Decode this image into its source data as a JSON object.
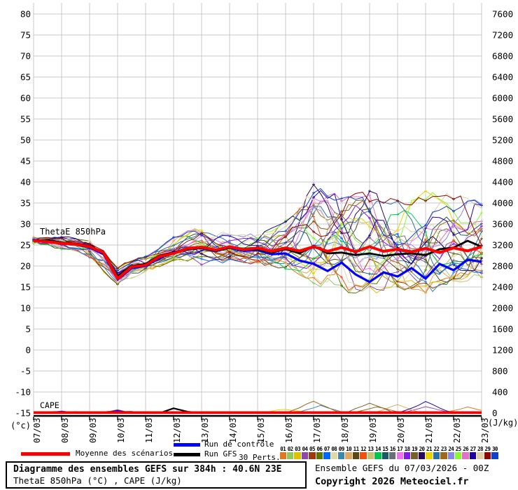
{
  "chart_data": {
    "type": "line",
    "title_label": "ThetaE 850hPa",
    "cape_label": "CAPE",
    "grid_color": "#c8c8c8",
    "left_axis": {
      "unit": "(°c)",
      "min": -15,
      "max": 80,
      "ticks": [
        80,
        75,
        70,
        65,
        60,
        55,
        50,
        45,
        40,
        35,
        30,
        25,
        20,
        15,
        10,
        5,
        0,
        -5,
        -10,
        -15
      ]
    },
    "right_axis": {
      "unit": "(J/kg)",
      "min": 0,
      "max": 7600,
      "ticks": [
        7600,
        7200,
        6800,
        6400,
        6000,
        5600,
        5200,
        4800,
        4400,
        4000,
        3600,
        3200,
        2800,
        2400,
        2000,
        1600,
        1200,
        800,
        400,
        0
      ]
    },
    "x_labels": [
      "07/03",
      "08/03",
      "09/03",
      "10/03",
      "11/03",
      "12/03",
      "13/03",
      "14/03",
      "15/03",
      "16/03",
      "17/03",
      "18/03",
      "19/03",
      "20/03",
      "21/03",
      "22/03",
      "23/03"
    ],
    "series": {
      "mean": {
        "label": "Moyenne des scénarios",
        "color": "#ff0000",
        "halfday_values": [
          26.0,
          25.8,
          25.4,
          25.2,
          24.6,
          23.2,
          17.0,
          19.8,
          20.2,
          22.3,
          23.0,
          24.2,
          24.5,
          23.8,
          24.6,
          23.9,
          24.3,
          23.5,
          24.3,
          23.6,
          24.6,
          23.5,
          24.4,
          23.4,
          24.6,
          23.5,
          24.0,
          23.4,
          24.2,
          23.2,
          24.3,
          23.6,
          24.6
        ]
      },
      "control": {
        "label": "Run de contrôle",
        "color": "#0000ff",
        "halfday_values": [
          26.2,
          25.9,
          25.5,
          25.1,
          24.4,
          22.8,
          16.8,
          19.5,
          20.0,
          22.0,
          23.3,
          24.0,
          24.3,
          23.5,
          24.4,
          23.6,
          23.8,
          22.8,
          23.0,
          21.3,
          20.5,
          18.8,
          20.8,
          18.0,
          16.2,
          18.5,
          17.5,
          19.5,
          17.0,
          20.5,
          19.0,
          21.5,
          21.0
        ]
      },
      "gfs": {
        "label": "Run GFS",
        "color": "#000000",
        "halfday_values": [
          26.0,
          26.2,
          25.6,
          25.3,
          24.8,
          23.0,
          17.6,
          20.0,
          20.5,
          22.5,
          23.2,
          24.0,
          24.3,
          23.6,
          24.4,
          24.0,
          24.0,
          23.2,
          24.0,
          23.0,
          24.8,
          23.0,
          23.2,
          22.6,
          23.0,
          22.4,
          22.8,
          23.0,
          22.6,
          24.0,
          24.4,
          26.0,
          24.6
        ]
      }
    },
    "envelope_daily": {
      "min": [
        25.2,
        24.3,
        22.5,
        15.5,
        19.0,
        21.5,
        21.0,
        21.5,
        21.0,
        20.0,
        17.0,
        15.0,
        15.0,
        16.0,
        15.0,
        17.0,
        18.0
      ],
      "max": [
        26.8,
        26.8,
        26.3,
        19.5,
        22.5,
        26.5,
        29.5,
        27.5,
        27.0,
        30.0,
        38.0,
        35.0,
        36.0,
        34.0,
        36.0,
        36.0,
        34.0
      ]
    },
    "cape": {
      "mean_level_jkg": 8,
      "control_halfday_jkg": [
        0,
        0,
        30,
        0,
        0,
        0,
        40,
        0,
        0,
        0,
        0,
        0,
        0,
        0,
        0,
        0,
        0,
        0,
        0,
        0,
        0,
        0,
        0,
        0,
        0,
        0,
        0,
        0,
        0,
        0,
        0,
        0,
        0
      ],
      "gfs_halfday_jkg": [
        0,
        0,
        0,
        0,
        0,
        0,
        0,
        0,
        0,
        0,
        90,
        25,
        0,
        0,
        0,
        0,
        0,
        0,
        0,
        0,
        0,
        0,
        0,
        0,
        0,
        0,
        0,
        0,
        0,
        0,
        0,
        0,
        0
      ],
      "member_spikes": [
        {
          "member": 22,
          "day": 10,
          "peak_jkg": 230
        },
        {
          "member": 8,
          "day": 10.25,
          "peak_jkg": 140
        },
        {
          "member": 18,
          "day": 12,
          "peak_jkg": 185
        },
        {
          "member": 22,
          "day": 12.25,
          "peak_jkg": 120
        },
        {
          "member": 9,
          "day": 13,
          "peak_jkg": 150
        },
        {
          "member": 26,
          "day": 14,
          "peak_jkg": 210
        },
        {
          "member": 3,
          "day": 14,
          "peak_jkg": 120
        },
        {
          "member": 0,
          "day": 15.5,
          "peak_jkg": 110
        },
        {
          "member": 20,
          "day": 9,
          "peak_jkg": 70
        },
        {
          "member": 4,
          "day": 3,
          "peak_jkg": 45
        },
        {
          "member": 12,
          "day": 1,
          "peak_jkg": 35
        }
      ]
    },
    "members": {
      "count": 30,
      "labels": [
        "01",
        "02",
        "03",
        "04",
        "05",
        "06",
        "07",
        "08",
        "09",
        "10",
        "11",
        "12",
        "13",
        "14",
        "15",
        "16",
        "17",
        "18",
        "19",
        "20",
        "21",
        "22",
        "23",
        "24",
        "25",
        "26",
        "27",
        "28",
        "29",
        "30"
      ],
      "colors": [
        "#e07820",
        "#90c860",
        "#e0c000",
        "#9048a8",
        "#a03810",
        "#5a7800",
        "#0064ff",
        "#e0d8a8",
        "#3888b0",
        "#e0a860",
        "#584818",
        "#f05010",
        "#c8c070",
        "#00c84c",
        "#1e5868",
        "#687078",
        "#f070f0",
        "#8818e8",
        "#786028",
        "#28095e",
        "#e8d400",
        "#2870a8",
        "#a06818",
        "#8888e8",
        "#88f830",
        "#e070c8",
        "#2000a0",
        "#e0d0a8",
        "#8c0808",
        "#1040c8"
      ]
    }
  },
  "legend": {
    "mean": "Moyenne des scénarios",
    "control": "Run de contrôle",
    "gfs": "Run GFS",
    "perts": "30 Perts."
  },
  "footer": {
    "box_title": "Diagramme des ensembles GEFS sur 384h : 40.6N 23E",
    "box_subtitle": "ThetaE 850hPa (°C) , CAPE (J/kg)",
    "run_info": "Ensemble GEFS du 07/03/2026 - 00Z",
    "copyright": "Copyright 2026 Meteociel.fr"
  }
}
